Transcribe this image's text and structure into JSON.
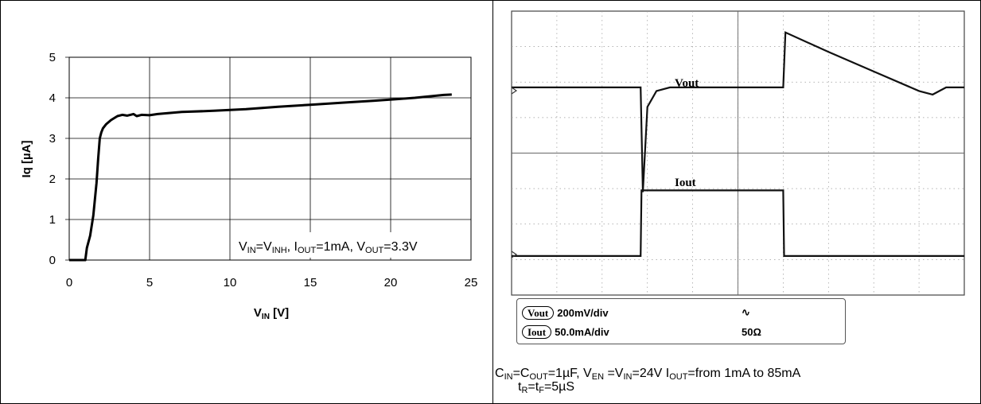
{
  "chart_data": [
    {
      "type": "line",
      "xlabel_main": "V",
      "xlabel_sub": "IN",
      "xlabel_tail": " [V]",
      "ylabel": "Iq [µA]",
      "xlim": [
        0,
        25
      ],
      "ylim": [
        0,
        5
      ],
      "x_ticks": [
        "0",
        "5",
        "10",
        "15",
        "20",
        "25"
      ],
      "y_ticks": [
        "0",
        "1",
        "2",
        "3",
        "4",
        "5"
      ],
      "grid": true,
      "annotation": {
        "p1": "V",
        "s1": "IN",
        "p2": "=V",
        "s2": "INH",
        "p3": ", I",
        "s3": "OUT",
        "p4": "=1mA, V",
        "s4": "OUT",
        "p5": "=3.3V"
      },
      "series": [
        {
          "x": [
            0,
            0.5,
            1.0,
            1.1,
            1.3,
            1.5,
            1.7,
            1.8,
            1.9,
            2.0,
            2.1,
            2.3,
            2.6,
            3.0,
            3.3,
            3.6,
            4.0,
            4.2,
            4.5,
            5.0,
            5.5,
            7.0,
            9.0,
            11.0,
            13.0,
            15.0,
            17.0,
            19.0,
            20.5,
            21.5,
            22.5,
            23.3,
            23.8
          ],
          "y": [
            0,
            0,
            0,
            0.3,
            0.6,
            1.1,
            1.9,
            2.5,
            3.0,
            3.15,
            3.25,
            3.35,
            3.45,
            3.55,
            3.58,
            3.56,
            3.6,
            3.55,
            3.58,
            3.57,
            3.6,
            3.65,
            3.68,
            3.72,
            3.78,
            3.83,
            3.88,
            3.93,
            3.97,
            4.0,
            4.04,
            4.07,
            4.08
          ]
        }
      ]
    },
    {
      "type": "line",
      "trace_labels": [
        "Vout",
        "Iout"
      ],
      "grid": true,
      "divisions": {
        "x": 10,
        "y": 8
      },
      "series": [
        {
          "name": "Vout",
          "x": [
            0,
            2.8,
            2.85,
            2.9,
            3.0,
            3.2,
            3.5,
            5.0,
            6.0,
            6.05,
            7.0,
            8.0,
            9.0,
            9.3,
            9.6,
            10.0
          ],
          "y": [
            5.85,
            5.85,
            5.85,
            2.9,
            5.3,
            5.75,
            5.85,
            5.85,
            5.85,
            7.4,
            6.85,
            6.3,
            5.75,
            5.65,
            5.85,
            5.85
          ]
        },
        {
          "name": "Iout",
          "x": [
            0,
            2.85,
            2.87,
            6.0,
            6.02,
            10.0
          ],
          "y": [
            1.1,
            1.1,
            2.95,
            2.95,
            1.1,
            1.1
          ]
        }
      ],
      "legend": {
        "row1": {
          "ch": "Vout",
          "scale": "200mV/div",
          "extra": "∿"
        },
        "row2": {
          "ch": "Iout",
          "scale": "50.0mA/div",
          "extra": "50Ω"
        }
      },
      "caption": {
        "l1": {
          "a": "C",
          "as": "IN",
          "b": "=C",
          "bs": "OUT",
          "c": "=1µF, V",
          "cs": "EN",
          "d": " =V",
          "ds": "IN",
          "e": "=24V I",
          "es": "OUT",
          "f": "=from 1mA to 85mA"
        },
        "l2": {
          "a": "t",
          "as": "R",
          "b": "=t",
          "bs": "F",
          "c": "=5µS"
        }
      }
    }
  ]
}
